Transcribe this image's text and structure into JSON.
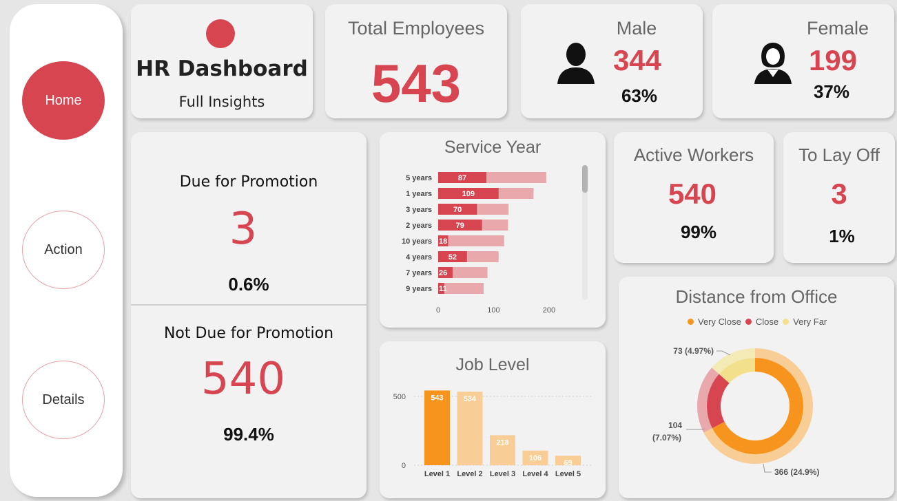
{
  "nav": {
    "items": [
      {
        "label": "Home",
        "active": true
      },
      {
        "label": "Action",
        "active": false
      },
      {
        "label": "Details",
        "active": false
      }
    ]
  },
  "header": {
    "title": "HR Dashboard",
    "subtitle": "Full Insights"
  },
  "kpis": {
    "total": {
      "label": "Total Employees",
      "value": "543"
    },
    "male": {
      "label": "Male",
      "value": "344",
      "pct": "63%"
    },
    "female": {
      "label": "Female",
      "value": "199",
      "pct": "37%"
    },
    "active": {
      "label": "Active Workers",
      "value": "540",
      "pct": "99%"
    },
    "layoff": {
      "label": "To Lay Off",
      "value": "3",
      "pct": "1%"
    }
  },
  "promotion": {
    "due_label": "Due for Promotion",
    "due_value": "3",
    "due_pct": "0.6%",
    "not_due_label": "Not Due for Promotion",
    "not_due_value": "540",
    "not_due_pct": "99.4%"
  },
  "colors": {
    "accent": "#d64550",
    "accent_light": "#e8a8ac",
    "orange": "#f7941d",
    "orange_light": "#f8cd96",
    "yellow": "#f3e08d"
  },
  "icons": {
    "male": "male-user-icon",
    "female": "female-user-icon"
  },
  "chart_data": [
    {
      "type": "bar",
      "orientation": "horizontal",
      "title": "Service Year",
      "categories": [
        "5 years",
        "1 years",
        "3 years",
        "2 years",
        "10 years",
        "4 years",
        "7 years",
        "9 years"
      ],
      "series": [
        {
          "values": [
            87,
            109,
            70,
            79,
            18,
            52,
            26,
            11
          ]
        },
        {
          "values": [
            195,
            172,
            127,
            126,
            119,
            109,
            89,
            82
          ]
        }
      ],
      "xticks": [
        "0",
        "100",
        "200"
      ],
      "xlim": [
        0,
        220
      ]
    },
    {
      "type": "bar",
      "title": "Job Level",
      "categories": [
        "Level 1",
        "Level 2",
        "Level 3",
        "Level 4",
        "Level 5"
      ],
      "values": [
        543,
        534,
        218,
        106,
        69
      ],
      "yticks": [
        "0",
        "500"
      ],
      "ylim": [
        0,
        600
      ]
    },
    {
      "type": "pie",
      "title": "Distance from Office",
      "legend": [
        "Very Close",
        "Close",
        "Very Far"
      ],
      "legend_position": "top",
      "inner": {
        "labels": [
          "Very Close",
          "Close",
          "Very Far"
        ],
        "values": [
          366,
          104,
          73
        ]
      },
      "outer_colors": [
        "#f8cd96",
        "#e8a8ac",
        "#f3eab5"
      ],
      "data_labels": [
        "366 (24.9%)",
        "104",
        "(7.07%)",
        "73 (4.97%)"
      ]
    }
  ]
}
